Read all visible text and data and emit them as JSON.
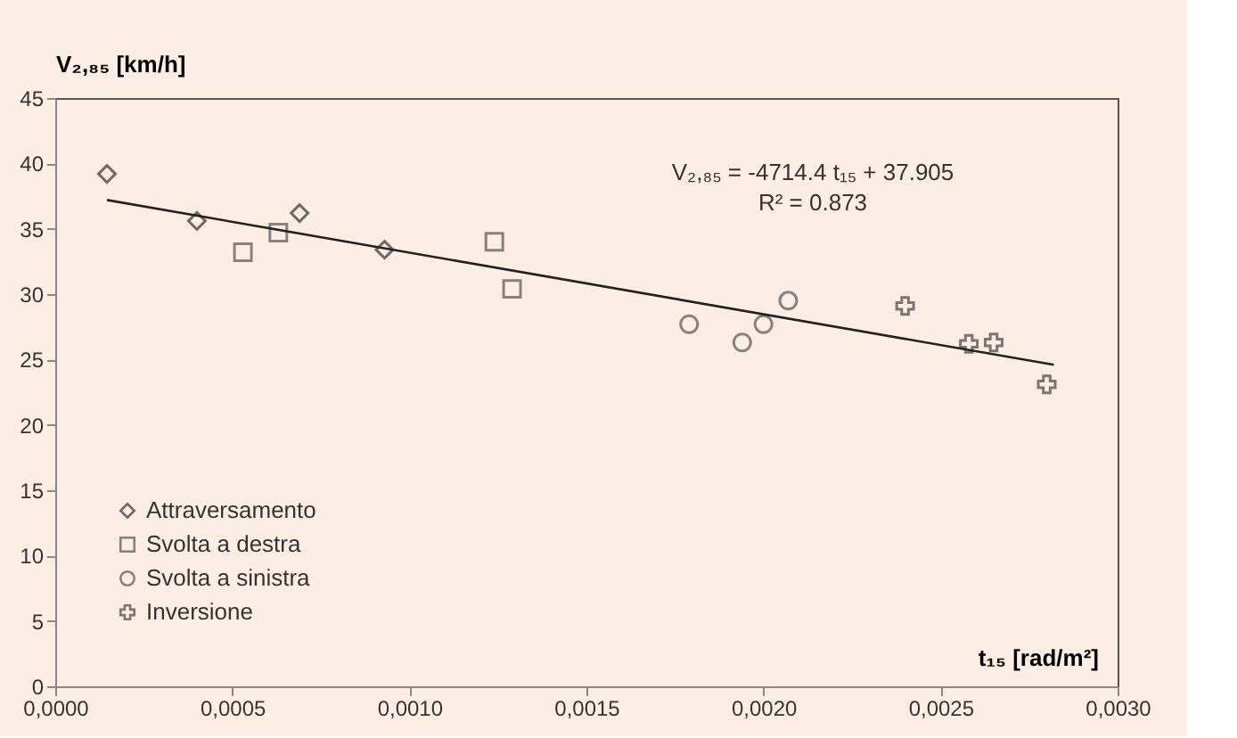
{
  "chart_data": {
    "type": "scatter",
    "ylabel": "V₂,₈₅ [km/h]",
    "xlabel": "t₁₅  [rad/m²]",
    "annotations": [
      "V₂,₈₅ = -4714.4 t₁₅ + 37.905",
      "R² = 0.873"
    ],
    "series": [
      {
        "name": "Attraversamento",
        "color": "#333333",
        "marker": "diamond",
        "x": [
          0.000146,
          0.0004,
          0.00069,
          0.00093
        ],
        "values": [
          39.2,
          35.6,
          36.2,
          33.4
        ]
      },
      {
        "name": "Svolta a destra",
        "color": "#555555",
        "marker": "square",
        "x": [
          0.00053,
          0.00063,
          0.00124,
          0.00129
        ],
        "values": [
          33.2,
          34.7,
          34.0,
          30.4
        ]
      },
      {
        "name": "Svolta a sinistra",
        "color": "#555555",
        "marker": "circle",
        "x": [
          0.00179,
          0.00194,
          0.002,
          0.00207
        ],
        "values": [
          27.7,
          26.3,
          27.7,
          29.5
        ]
      },
      {
        "name": "Inversione",
        "color": "#444444",
        "marker": "cross",
        "x": [
          0.0024,
          0.00258,
          0.00265,
          0.0028
        ],
        "values": [
          29.1,
          26.2,
          26.3,
          23.1
        ]
      },
      {
        "type": "line",
        "color": "#222222",
        "x": [
          0.000146,
          0.00282
        ],
        "values": [
          37.2,
          24.6
        ]
      }
    ],
    "xlim": [
      0,
      0.003
    ],
    "xticks": [
      {
        "value": 0,
        "label": "0,0000"
      },
      {
        "value": 0.0005,
        "label": "0,0005"
      },
      {
        "value": 0.001,
        "label": "0,0010"
      },
      {
        "value": 0.0015,
        "label": "0,0015"
      },
      {
        "value": 0.002,
        "label": "0,0020"
      },
      {
        "value": 0.0025,
        "label": "0,0025"
      },
      {
        "value": 0.003,
        "label": "0,0030"
      }
    ],
    "ylim": [
      0,
      45
    ],
    "yticks": [
      0,
      5,
      10,
      15,
      20,
      25,
      30,
      35,
      40,
      45
    ],
    "grid": false,
    "legend": "bottom left"
  }
}
